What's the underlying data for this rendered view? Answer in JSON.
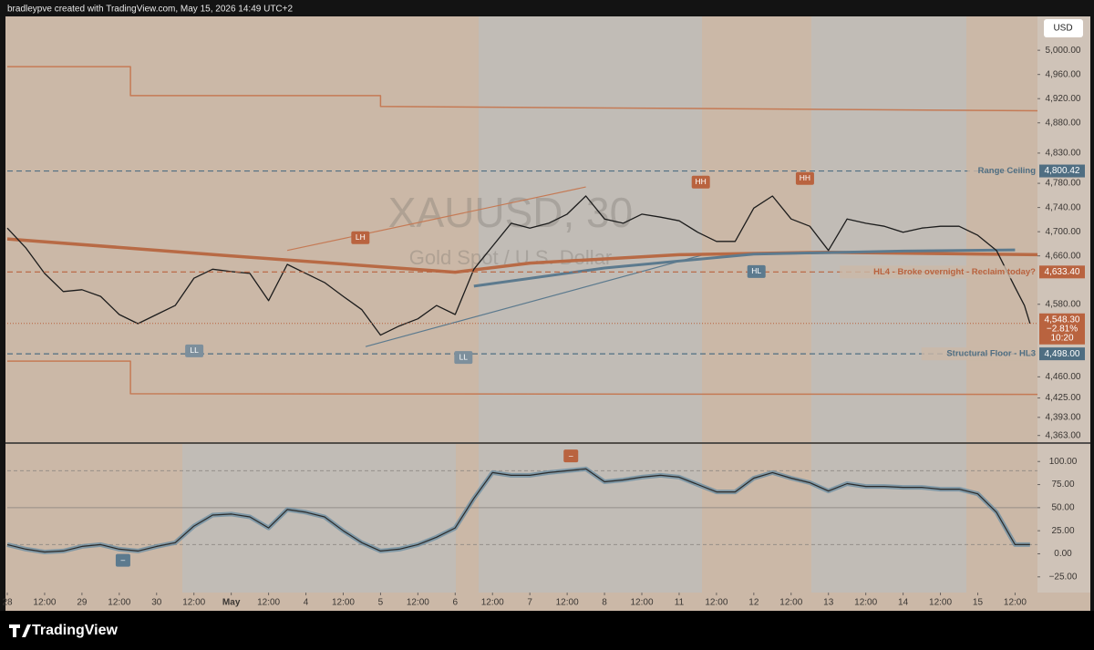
{
  "attribution": "bradleypve created with TradingView.com, May 15, 2026 14:49 UTC+2",
  "currency": "USD",
  "watermark": {
    "symbol": "XAUUSD, 30",
    "description": "Gold Spot / U.S. Dollar"
  },
  "brand": "TradingView",
  "chart_data": [
    {
      "type": "line",
      "xlim": [
        0,
        27.6
      ],
      "ylim": [
        4352,
        5056
      ],
      "yticks": [
        {
          "value": 5000,
          "label": "5,000.00"
        },
        {
          "value": 4960,
          "label": "4,960.00"
        },
        {
          "value": 4920,
          "label": "4,920.00"
        },
        {
          "value": 4880,
          "label": "4,880.00"
        },
        {
          "value": 4830,
          "label": "4,830.00"
        },
        {
          "value": 4780,
          "label": "4,780.00"
        },
        {
          "value": 4740,
          "label": "4,740.00"
        },
        {
          "value": 4700,
          "label": "4,700.00"
        },
        {
          "value": 4660,
          "label": "4,660.00"
        },
        {
          "value": 4580,
          "label": "4,580.00"
        },
        {
          "value": 4460,
          "label": "4,460.00"
        },
        {
          "value": 4425,
          "label": "4,425.00"
        },
        {
          "value": 4393,
          "label": "4,393.00"
        },
        {
          "value": 4363,
          "label": "4,363.00"
        }
      ],
      "series": [
        {
          "color": "#c57a55",
          "width": 1.5,
          "x": [
            0,
            3.3,
            3.3,
            10,
            10,
            27.6
          ],
          "values": [
            4973,
            4973,
            4925,
            4925,
            4907,
            4900
          ]
        },
        {
          "color": "#c57a55",
          "width": 1.5,
          "x": [
            0,
            3.3,
            3.3,
            27.6
          ],
          "values": [
            4486,
            4486,
            4432,
            4431
          ]
        },
        {
          "color": "#b86a45",
          "width": 3.5,
          "x": [
            0,
            6,
            12,
            14,
            18,
            22,
            27.6
          ],
          "values": [
            4688,
            4660,
            4633,
            4648,
            4662,
            4666,
            4662
          ]
        },
        {
          "color": "#5c7a8e",
          "width": 3,
          "x": [
            12.5,
            16,
            20,
            24,
            27
          ],
          "values": [
            4610,
            4640,
            4663,
            4668,
            4670
          ]
        },
        {
          "color": "#1c1c1c",
          "width": 1.3,
          "x": [
            0,
            0.5,
            1,
            1.5,
            2,
            2.5,
            3,
            3.5,
            4,
            4.5,
            5,
            5.5,
            6,
            6.5,
            7,
            7.5,
            8,
            8.5,
            9,
            9.5,
            10,
            10.5,
            11,
            11.5,
            12,
            12.5,
            13,
            13.5,
            14,
            14.5,
            15,
            15.5,
            16,
            16.5,
            17,
            17.5,
            18,
            18.5,
            19,
            19.5,
            20,
            20.5,
            21,
            21.5,
            22,
            22.5,
            23,
            23.5,
            24,
            24.5,
            25,
            25.5,
            26,
            26.5,
            27,
            27.25,
            27.4
          ],
          "values": [
            4706,
            4673,
            4631,
            4601,
            4604,
            4593,
            4563,
            4548,
            4563,
            4578,
            4623,
            4638,
            4634,
            4631,
            4586,
            4646,
            4631,
            4616,
            4593,
            4571,
            4529,
            4544,
            4556,
            4578,
            4563,
            4638,
            4676,
            4714,
            4706,
            4714,
            4729,
            4759,
            4721,
            4714,
            4729,
            4724,
            4718,
            4699,
            4684,
            4684,
            4739,
            4759,
            4721,
            4709,
            4669,
            4721,
            4714,
            4709,
            4699,
            4706,
            4709,
            4709,
            4694,
            4669,
            4608,
            4578,
            4548.3
          ]
        }
      ],
      "trendlines": [
        {
          "color": "#c57a55",
          "x1": 7.5,
          "y1": 4669,
          "x2": 15.5,
          "y2": 4774
        },
        {
          "color": "#5c7a8e",
          "x1": 9.6,
          "y1": 4510,
          "x2": 18.6,
          "y2": 4661
        }
      ],
      "levels": [
        {
          "value": 4800.42,
          "label": "4,800.42",
          "text": "Range Ceiling",
          "color": "#4f6e82"
        },
        {
          "value": 4633.4,
          "label": "4,633.40",
          "text": "HL4 - Broke overnight - Reclaim today?",
          "color": "#b9633f"
        },
        {
          "value": 4498.0,
          "label": "4,498.00",
          "text": "Structural Floor - HL3",
          "color": "#4f6e82"
        }
      ],
      "last_price": {
        "value": 4548.3,
        "label": "4,548.30",
        "change": -2.81,
        "change_label": "−2.81%",
        "countdown": "10:20",
        "color": "#b9633f"
      },
      "markers": [
        {
          "text": "HH",
          "x": 18.58,
          "y": 4782,
          "color": "#b9633f"
        },
        {
          "text": "HH",
          "x": 21.37,
          "y": 4788,
          "color": "#b9633f"
        },
        {
          "text": "LH",
          "x": 9.46,
          "y": 4690,
          "color": "#b9633f"
        },
        {
          "text": "HL",
          "x": 20.07,
          "y": 4634,
          "color": "#5c7a8e"
        },
        {
          "text": "LL",
          "x": 5.01,
          "y": 4503,
          "color": "#7d8f9c"
        },
        {
          "text": "LL",
          "x": 12.22,
          "y": 4492,
          "color": "#7d8f9c"
        }
      ]
    },
    {
      "type": "line",
      "xlim": [
        0,
        27.6
      ],
      "ylim": [
        -42,
        119
      ],
      "xticks": [
        {
          "value": 0,
          "label": "28"
        },
        {
          "value": 1,
          "label": "12:00"
        },
        {
          "value": 2,
          "label": "29"
        },
        {
          "value": 3,
          "label": "12:00"
        },
        {
          "value": 4,
          "label": "30"
        },
        {
          "value": 5,
          "label": "12:00"
        },
        {
          "value": 6,
          "label": "May"
        },
        {
          "value": 7,
          "label": "12:00"
        },
        {
          "value": 8,
          "label": "4"
        },
        {
          "value": 9,
          "label": "12:00"
        },
        {
          "value": 10,
          "label": "5"
        },
        {
          "value": 11,
          "label": "12:00"
        },
        {
          "value": 12,
          "label": "6"
        },
        {
          "value": 13,
          "label": "12:00"
        },
        {
          "value": 14,
          "label": "7"
        },
        {
          "value": 15,
          "label": "12:00"
        },
        {
          "value": 16,
          "label": "8"
        },
        {
          "value": 17,
          "label": "12:00"
        },
        {
          "value": 18,
          "label": "11"
        },
        {
          "value": 19,
          "label": "12:00"
        },
        {
          "value": 20,
          "label": "12"
        },
        {
          "value": 21,
          "label": "12:00"
        },
        {
          "value": 22,
          "label": "13"
        },
        {
          "value": 23,
          "label": "12:00"
        },
        {
          "value": 24,
          "label": "14"
        },
        {
          "value": 25,
          "label": "12:00"
        },
        {
          "value": 26,
          "label": "15"
        },
        {
          "value": 27,
          "label": "12:00"
        }
      ],
      "yticks": [
        {
          "value": 100,
          "label": "100.00"
        },
        {
          "value": 75,
          "label": "75.00"
        },
        {
          "value": 50,
          "label": "50.00"
        },
        {
          "value": 25,
          "label": "25.00"
        },
        {
          "value": 0,
          "label": "0.00"
        },
        {
          "value": -25,
          "label": "−25.00"
        }
      ],
      "levels": [
        90,
        50,
        10
      ],
      "series": [
        {
          "color": "#2b2b2b",
          "halo_color": "#6e8ea3",
          "width": 1.2,
          "x": [
            0,
            0.5,
            1,
            1.5,
            2,
            2.5,
            3,
            3.5,
            4,
            4.5,
            5,
            5.5,
            6,
            6.5,
            7,
            7.5,
            8,
            8.5,
            9,
            9.5,
            10,
            10.5,
            11,
            11.5,
            12,
            12.5,
            13,
            13.5,
            14,
            14.5,
            15,
            15.5,
            16,
            16.5,
            17,
            17.5,
            18,
            18.5,
            19,
            19.5,
            20,
            20.5,
            21,
            21.5,
            22,
            22.5,
            23,
            23.5,
            24,
            24.5,
            25,
            25.5,
            26,
            26.5,
            27,
            27.4
          ],
          "values": [
            10,
            5,
            2,
            3,
            8,
            10,
            5,
            3,
            8,
            12,
            30,
            42,
            43,
            40,
            28,
            48,
            45,
            40,
            25,
            12,
            3,
            5,
            10,
            18,
            28,
            60,
            88,
            85,
            85,
            88,
            90,
            92,
            78,
            80,
            83,
            85,
            83,
            75,
            67,
            67,
            82,
            88,
            82,
            77,
            68,
            76,
            73,
            73,
            72,
            72,
            70,
            70,
            65,
            45,
            10,
            10
          ]
        }
      ],
      "markers": [
        {
          "text": "–",
          "x": 15.1,
          "y": 106,
          "color": "#b9633f"
        },
        {
          "text": "–",
          "x": 3.1,
          "y": -7,
          "color": "#5c7a8e"
        }
      ]
    }
  ]
}
